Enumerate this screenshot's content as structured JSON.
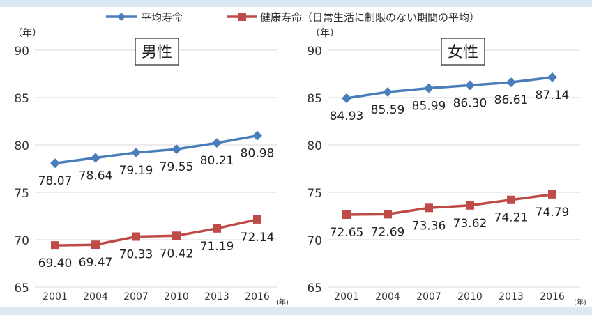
{
  "legend": [
    {
      "name": "平均寿命",
      "color": "#4a7ebb"
    },
    {
      "name": "健康寿命（日常生活に制限のない期間の平均）",
      "color": "#be4b48"
    }
  ],
  "chart_data": [
    {
      "type": "line",
      "title": "男性",
      "ylabel": "（年）",
      "xlabel": "(年)",
      "categories": [
        "2001",
        "2004",
        "2007",
        "2010",
        "2013",
        "2016"
      ],
      "yticks": [
        65,
        70,
        75,
        80,
        85,
        90
      ],
      "ylim": [
        65,
        90
      ],
      "grid": true,
      "series": [
        {
          "name": "平均寿命",
          "color": "#4a7ebb",
          "marker": "diamond",
          "values": [
            78.07,
            78.64,
            79.19,
            79.55,
            80.21,
            80.98
          ],
          "labels": [
            "78.07",
            "78.64",
            "79.19",
            "79.55",
            "80.21",
            "80.98"
          ]
        },
        {
          "name": "健康寿命（日常生活に制限のない期間の平均）",
          "color": "#be4b48",
          "marker": "square",
          "values": [
            69.4,
            69.47,
            70.33,
            70.42,
            71.19,
            72.14
          ],
          "labels": [
            "69.40",
            "69.47",
            "70.33",
            "70.42",
            "71.19",
            "72.14"
          ]
        }
      ]
    },
    {
      "type": "line",
      "title": "女性",
      "ylabel": "（年）",
      "xlabel": "(年)",
      "categories": [
        "2001",
        "2004",
        "2007",
        "2010",
        "2013",
        "2016"
      ],
      "yticks": [
        65,
        70,
        75,
        80,
        85,
        90
      ],
      "ylim": [
        65,
        90
      ],
      "grid": true,
      "series": [
        {
          "name": "平均寿命",
          "color": "#4a7ebb",
          "marker": "diamond",
          "values": [
            84.93,
            85.59,
            85.99,
            86.3,
            86.61,
            87.14
          ],
          "labels": [
            "84.93",
            "85.59",
            "85.99",
            "86.30",
            "86.61",
            "87.14"
          ]
        },
        {
          "name": "健康寿命（日常生活に制限のない期間の平均）",
          "color": "#be4b48",
          "marker": "square",
          "values": [
            72.65,
            72.69,
            73.36,
            73.62,
            74.21,
            74.79
          ],
          "labels": [
            "72.65",
            "72.69",
            "73.36",
            "73.62",
            "74.21",
            "74.79"
          ]
        }
      ]
    }
  ]
}
